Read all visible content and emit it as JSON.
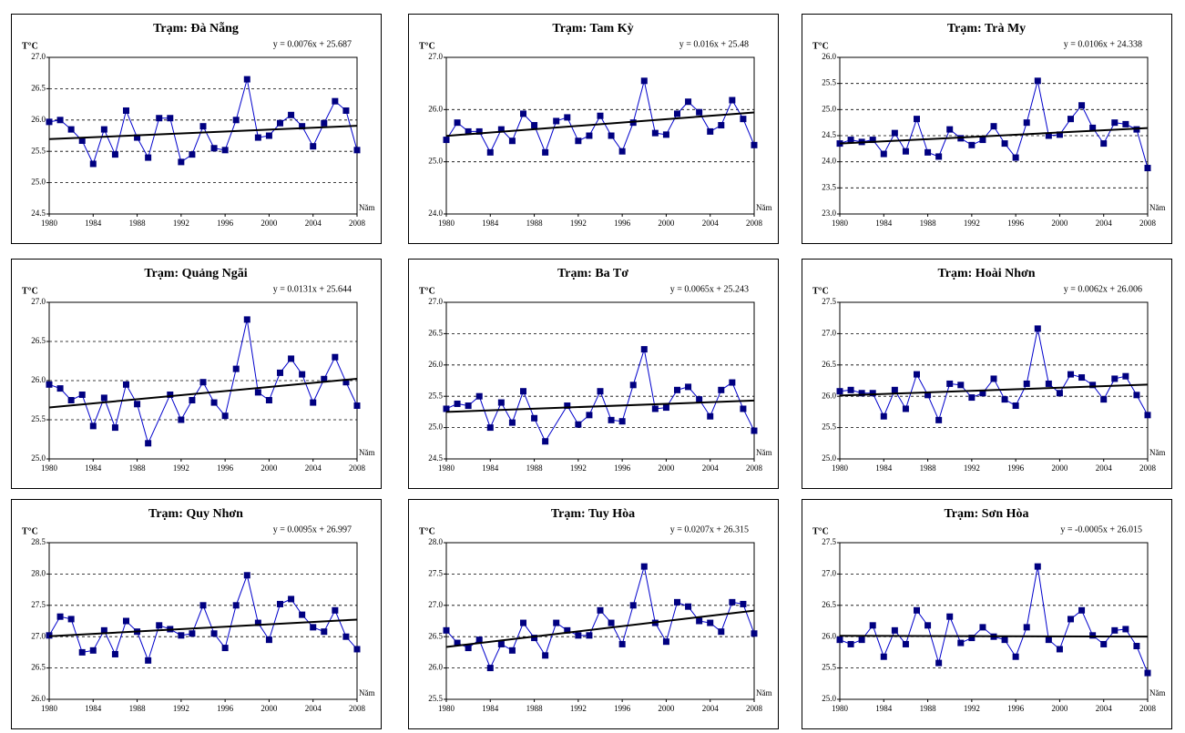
{
  "chart_data": [
    {
      "type": "line",
      "title": "Trạm: Đà Nẵng",
      "ylabel": "T°C",
      "xlabel": "Năm",
      "x": [
        1980,
        1981,
        1982,
        1983,
        1984,
        1985,
        1986,
        1987,
        1988,
        1989,
        1990,
        1991,
        1992,
        1993,
        1994,
        1995,
        1996,
        1997,
        1998,
        1999,
        2000,
        2001,
        2002,
        2003,
        2004,
        2005,
        2006,
        2007,
        2008
      ],
      "values": [
        25.97,
        26.0,
        25.85,
        25.67,
        25.3,
        25.85,
        25.45,
        26.15,
        25.72,
        25.4,
        26.03,
        26.03,
        25.33,
        25.45,
        25.9,
        25.55,
        25.52,
        26.0,
        26.65,
        25.72,
        25.75,
        25.95,
        26.08,
        25.9,
        25.58,
        25.95,
        26.3,
        26.15,
        25.52
      ],
      "color": "#0000cc",
      "marker_color": "#000080",
      "trendline": {
        "label": "y = 0.0076x + 25.687",
        "slope": 0.0076,
        "intercept": 25.687,
        "color": "#000000"
      },
      "xlim": [
        1980,
        2008
      ],
      "xticks": [
        1980,
        1984,
        1988,
        1992,
        1996,
        2000,
        2004,
        2008
      ],
      "ylim": [
        24.5,
        27
      ],
      "yticks": [
        24.5,
        {
          "value": 25,
          "label": "25.0"
        },
        25.5,
        {
          "value": 26,
          "label": "26.0"
        },
        26.5,
        {
          "value": 27,
          "label": "27.0"
        }
      ],
      "grid": true
    },
    {
      "type": "line",
      "title": "Trạm: Tam Kỳ",
      "ylabel": "T°C",
      "xlabel": "Năm",
      "x": [
        1980,
        1981,
        1982,
        1983,
        1984,
        1985,
        1986,
        1987,
        1988,
        1989,
        1990,
        1991,
        1992,
        1993,
        1994,
        1995,
        1996,
        1997,
        1998,
        1999,
        2000,
        2001,
        2002,
        2003,
        2004,
        2005,
        2006,
        2007,
        2008
      ],
      "values": [
        25.42,
        25.75,
        25.58,
        25.58,
        25.18,
        25.62,
        25.4,
        25.92,
        25.7,
        25.18,
        25.78,
        25.85,
        25.4,
        25.5,
        25.88,
        25.5,
        25.2,
        25.75,
        26.55,
        25.55,
        25.52,
        25.92,
        26.15,
        25.95,
        25.58,
        25.7,
        26.18,
        25.82,
        25.32
      ],
      "color": "#0000cc",
      "marker_color": "#000080",
      "trendline": {
        "label": "y = 0.016x + 25.48",
        "slope": 0.016,
        "intercept": 25.48,
        "color": "#000000"
      },
      "xlim": [
        1980,
        2008
      ],
      "xticks": [
        1980,
        1984,
        1988,
        1992,
        1996,
        2000,
        2004,
        2008
      ],
      "ylim": [
        24,
        27
      ],
      "yticks": [
        {
          "value": 24,
          "label": "24.0"
        },
        {
          "value": 25,
          "label": "25.0"
        },
        {
          "value": 26,
          "label": "26.0"
        },
        {
          "value": 27,
          "label": "27.0"
        }
      ],
      "grid": true
    },
    {
      "type": "line",
      "title": "Trạm: Trà My",
      "ylabel": "T°C",
      "xlabel": "Năm",
      "x": [
        1980,
        1981,
        1982,
        1983,
        1984,
        1985,
        1986,
        1987,
        1988,
        1989,
        1990,
        1991,
        1992,
        1993,
        1994,
        1995,
        1996,
        1997,
        1998,
        1999,
        2000,
        2001,
        2002,
        2003,
        2004,
        2005,
        2006,
        2007,
        2008
      ],
      "values": [
        24.35,
        24.42,
        24.38,
        24.42,
        24.15,
        24.55,
        24.2,
        24.82,
        24.18,
        24.1,
        24.62,
        24.45,
        24.32,
        24.42,
        24.68,
        24.35,
        24.08,
        24.75,
        25.55,
        24.5,
        24.52,
        24.82,
        25.08,
        24.65,
        24.35,
        24.75,
        24.72,
        24.62,
        23.88
      ],
      "color": "#0000cc",
      "marker_color": "#000080",
      "trendline": {
        "label": "y = 0.0106x + 24.338",
        "slope": 0.0106,
        "intercept": 24.338,
        "color": "#000000"
      },
      "xlim": [
        1980,
        2008
      ],
      "xticks": [
        1980,
        1984,
        1988,
        1992,
        1996,
        2000,
        2004,
        2008
      ],
      "ylim": [
        23,
        26
      ],
      "yticks": [
        {
          "value": 23,
          "label": "23.0"
        },
        23.5,
        {
          "value": 24,
          "label": "24.0"
        },
        24.5,
        {
          "value": 25,
          "label": "25.0"
        },
        25.5,
        {
          "value": 26,
          "label": "26.0"
        }
      ],
      "grid": true
    },
    {
      "type": "line",
      "title": "Trạm: Quảng Ngãi",
      "ylabel": "T°C",
      "xlabel": "Năm",
      "x": [
        1980,
        1981,
        1982,
        1983,
        1984,
        1985,
        1986,
        1987,
        1988,
        1989,
        1991,
        1992,
        1993,
        1994,
        1995,
        1996,
        1997,
        1998,
        1999,
        2000,
        2001,
        2002,
        2003,
        2004,
        2005,
        2006,
        2007,
        2008
      ],
      "values": [
        25.95,
        25.9,
        25.75,
        25.82,
        25.42,
        25.78,
        25.4,
        25.95,
        25.7,
        25.2,
        25.82,
        25.5,
        25.75,
        25.98,
        25.72,
        25.55,
        26.15,
        26.78,
        25.85,
        25.75,
        26.1,
        26.28,
        26.08,
        25.72,
        26.02,
        26.3,
        25.98,
        25.68
      ],
      "color": "#0000cc",
      "marker_color": "#000080",
      "trendline": {
        "label": "y = 0.0131x + 25.644",
        "slope": 0.0131,
        "intercept": 25.644,
        "color": "#000000"
      },
      "xlim": [
        1980,
        2008
      ],
      "xticks": [
        1980,
        1984,
        1988,
        1992,
        1996,
        2000,
        2004,
        2008
      ],
      "ylim": [
        25,
        27
      ],
      "yticks": [
        {
          "value": 25,
          "label": "25.0"
        },
        25.5,
        {
          "value": 26,
          "label": "26.0"
        },
        26.5,
        {
          "value": 27,
          "label": "27.0"
        }
      ],
      "grid": true
    },
    {
      "type": "line",
      "title": "Trạm: Ba Tơ",
      "ylabel": "T°C",
      "xlabel": "Năm",
      "x": [
        1980,
        1981,
        1982,
        1983,
        1984,
        1985,
        1986,
        1987,
        1988,
        1989,
        1991,
        1992,
        1993,
        1994,
        1995,
        1996,
        1997,
        1998,
        1999,
        2000,
        2001,
        2002,
        2003,
        2004,
        2005,
        2006,
        2007,
        2008
      ],
      "values": [
        25.3,
        25.38,
        25.35,
        25.5,
        25.0,
        25.4,
        25.08,
        25.58,
        25.15,
        24.78,
        25.35,
        25.05,
        25.2,
        25.58,
        25.12,
        25.1,
        25.68,
        26.25,
        25.3,
        25.32,
        25.6,
        25.65,
        25.45,
        25.18,
        25.6,
        25.72,
        25.3,
        24.95
      ],
      "color": "#0000cc",
      "marker_color": "#000080",
      "trendline": {
        "label": "y = 0.0065x + 25.243",
        "slope": 0.0065,
        "intercept": 25.243,
        "color": "#000000"
      },
      "xlim": [
        1980,
        2008
      ],
      "xticks": [
        1980,
        1984,
        1988,
        1992,
        1996,
        2000,
        2004,
        2008
      ],
      "ylim": [
        24.5,
        27
      ],
      "yticks": [
        24.5,
        {
          "value": 25,
          "label": "25.0"
        },
        25.5,
        {
          "value": 26,
          "label": "26.0"
        },
        26.5,
        {
          "value": 27,
          "label": "27.0"
        }
      ],
      "grid": true
    },
    {
      "type": "line",
      "title": "Trạm: Hoài Nhơn",
      "ylabel": "T°C",
      "xlabel": "Năm",
      "x": [
        1980,
        1981,
        1982,
        1983,
        1984,
        1985,
        1986,
        1987,
        1988,
        1989,
        1990,
        1991,
        1992,
        1993,
        1994,
        1995,
        1996,
        1997,
        1998,
        1999,
        2000,
        2001,
        2002,
        2003,
        2004,
        2005,
        2006,
        2007,
        2008
      ],
      "values": [
        26.08,
        26.1,
        26.05,
        26.05,
        25.68,
        26.1,
        25.8,
        26.35,
        26.02,
        25.62,
        26.2,
        26.18,
        25.98,
        26.05,
        26.28,
        25.95,
        25.85,
        26.2,
        27.08,
        26.2,
        26.05,
        26.35,
        26.3,
        26.18,
        25.95,
        26.28,
        26.32,
        26.02,
        25.7
      ],
      "color": "#0000cc",
      "marker_color": "#000080",
      "trendline": {
        "label": "y = 0.0062x + 26.006",
        "slope": 0.0062,
        "intercept": 26.006,
        "color": "#000000"
      },
      "xlim": [
        1980,
        2008
      ],
      "xticks": [
        1980,
        1984,
        1988,
        1992,
        1996,
        2000,
        2004,
        2008
      ],
      "ylim": [
        25,
        27.5
      ],
      "yticks": [
        {
          "value": 25,
          "label": "25.0"
        },
        25.5,
        {
          "value": 26,
          "label": "26.0"
        },
        26.5,
        {
          "value": 27,
          "label": "27.0"
        },
        27.5
      ],
      "grid": true
    },
    {
      "type": "line",
      "title": "Trạm: Quy Nhơn",
      "ylabel": "T°C",
      "xlabel": "Năm",
      "x": [
        1980,
        1981,
        1982,
        1983,
        1984,
        1985,
        1986,
        1987,
        1988,
        1989,
        1990,
        1991,
        1992,
        1993,
        1994,
        1995,
        1996,
        1997,
        1998,
        1999,
        2000,
        2001,
        2002,
        2003,
        2004,
        2005,
        2006,
        2007,
        2008
      ],
      "values": [
        27.02,
        27.32,
        27.28,
        26.75,
        26.78,
        27.1,
        26.72,
        27.25,
        27.08,
        26.62,
        27.18,
        27.12,
        27.02,
        27.05,
        27.5,
        27.05,
        26.82,
        27.5,
        27.98,
        27.22,
        26.95,
        27.52,
        27.6,
        27.35,
        27.15,
        27.08,
        27.42,
        27.0,
        26.8
      ],
      "color": "#0000cc",
      "marker_color": "#000080",
      "trendline": {
        "label": "y = 0.0095x + 26.997",
        "slope": 0.0095,
        "intercept": 26.997,
        "color": "#000000"
      },
      "xlim": [
        1980,
        2008
      ],
      "xticks": [
        1980,
        1984,
        1988,
        1992,
        1996,
        2000,
        2004,
        2008
      ],
      "ylim": [
        26,
        28.5
      ],
      "yticks": [
        {
          "value": 26,
          "label": "26.0"
        },
        26.5,
        {
          "value": 27,
          "label": "27.0"
        },
        27.5,
        {
          "value": 28,
          "label": "28.0"
        },
        28.5
      ],
      "grid": true
    },
    {
      "type": "line",
      "title": "Trạm: Tuy Hòa",
      "ylabel": "T°C",
      "xlabel": "Năm",
      "x": [
        1980,
        1981,
        1982,
        1983,
        1984,
        1985,
        1986,
        1987,
        1988,
        1989,
        1990,
        1991,
        1992,
        1993,
        1994,
        1995,
        1996,
        1997,
        1998,
        1999,
        2000,
        2001,
        2002,
        2003,
        2004,
        2005,
        2006,
        2007,
        2008
      ],
      "values": [
        26.6,
        26.4,
        26.32,
        26.45,
        26.0,
        26.38,
        26.28,
        26.72,
        26.48,
        26.2,
        26.72,
        26.6,
        26.52,
        26.52,
        26.92,
        26.72,
        26.38,
        27.0,
        27.62,
        26.72,
        26.42,
        27.05,
        26.98,
        26.75,
        26.72,
        26.58,
        27.05,
        27.02,
        26.55
      ],
      "color": "#0000cc",
      "marker_color": "#000080",
      "trendline": {
        "label": "y = 0.0207x + 26.315",
        "slope": 0.0207,
        "intercept": 26.315,
        "color": "#000000"
      },
      "xlim": [
        1980,
        2008
      ],
      "xticks": [
        1980,
        1984,
        1988,
        1992,
        1996,
        2000,
        2004,
        2008
      ],
      "ylim": [
        25.5,
        28
      ],
      "yticks": [
        25.5,
        {
          "value": 26,
          "label": "26.0"
        },
        26.5,
        {
          "value": 27,
          "label": "27.0"
        },
        27.5,
        {
          "value": 28,
          "label": "28.0"
        }
      ],
      "grid": true
    },
    {
      "type": "line",
      "title": "Trạm: Sơn Hòa",
      "ylabel": "T°C",
      "xlabel": "Năm",
      "x": [
        1980,
        1981,
        1982,
        1983,
        1984,
        1985,
        1986,
        1987,
        1988,
        1989,
        1990,
        1991,
        1992,
        1993,
        1994,
        1995,
        1996,
        1997,
        1998,
        1999,
        2000,
        2001,
        2002,
        2003,
        2004,
        2005,
        2006,
        2007,
        2008
      ],
      "values": [
        25.95,
        25.88,
        25.95,
        26.18,
        25.68,
        26.1,
        25.88,
        26.42,
        26.18,
        25.58,
        26.32,
        25.9,
        25.98,
        26.15,
        26.0,
        25.95,
        25.68,
        26.15,
        27.12,
        25.95,
        25.8,
        26.28,
        26.42,
        26.02,
        25.88,
        26.1,
        26.12,
        25.85,
        25.42
      ],
      "color": "#0000cc",
      "marker_color": "#000080",
      "trendline": {
        "label": "y = -0.0005x + 26.015",
        "slope": -0.0005,
        "intercept": 26.015,
        "color": "#000000"
      },
      "xlim": [
        1980,
        2008
      ],
      "xticks": [
        1980,
        1984,
        1988,
        1992,
        1996,
        2000,
        2004,
        2008
      ],
      "ylim": [
        25,
        27.5
      ],
      "yticks": [
        {
          "value": 25,
          "label": "25.0"
        },
        25.5,
        {
          "value": 26,
          "label": "26.0"
        },
        26.5,
        {
          "value": 27,
          "label": "27.0"
        },
        27.5
      ],
      "grid": true
    }
  ]
}
